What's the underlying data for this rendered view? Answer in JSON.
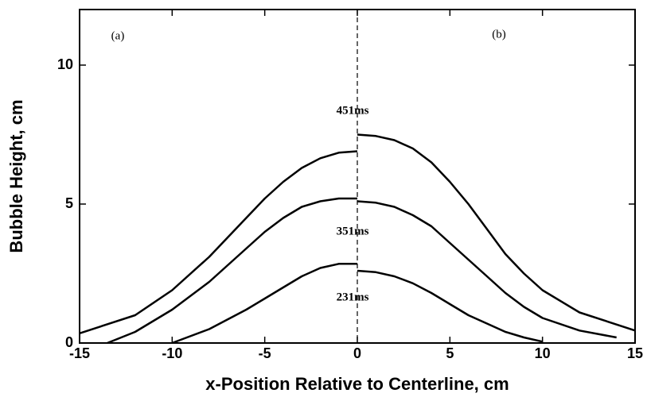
{
  "chart_data": {
    "type": "line",
    "x_label": "x-Position Relative to Centerline, cm",
    "y_label": "Bubble Height, cm",
    "annotations": [
      "451ms",
      "351ms",
      "231ms",
      "(a)",
      "(b)"
    ],
    "xlim": [
      -15,
      15
    ],
    "xticks": [
      -15,
      -10,
      -5,
      0,
      5,
      10,
      15
    ],
    "ylim": [
      0,
      12
    ],
    "yticks": [
      0,
      5,
      10
    ],
    "color": "#000000",
    "series": [
      {
        "x": [
          -15,
          -12,
          -10,
          -8,
          -6,
          -5,
          -4,
          -3,
          -2,
          -1,
          0
        ],
        "values": [
          0.35,
          1.0,
          1.9,
          3.1,
          4.5,
          5.2,
          5.8,
          6.3,
          6.65,
          6.85,
          6.9
        ]
      },
      {
        "x": [
          0,
          1,
          2,
          3,
          4,
          5,
          6,
          7,
          8,
          9,
          10,
          12,
          15
        ],
        "values": [
          7.5,
          7.45,
          7.3,
          7.0,
          6.5,
          5.8,
          5.0,
          4.1,
          3.2,
          2.5,
          1.9,
          1.1,
          0.45
        ]
      },
      {
        "x": [
          -13.5,
          -12,
          -10,
          -8,
          -6,
          -5,
          -4,
          -3,
          -2,
          -1,
          0
        ],
        "values": [
          0,
          0.4,
          1.2,
          2.2,
          3.4,
          4.0,
          4.5,
          4.9,
          5.1,
          5.2,
          5.2
        ]
      },
      {
        "x": [
          0,
          1,
          2,
          3,
          4,
          5,
          6,
          7,
          8,
          9,
          10,
          12,
          14
        ],
        "values": [
          5.1,
          5.05,
          4.9,
          4.6,
          4.2,
          3.6,
          3.0,
          2.4,
          1.8,
          1.3,
          0.9,
          0.45,
          0.2
        ]
      },
      {
        "x": [
          -10,
          -8,
          -6,
          -5,
          -4,
          -3,
          -2,
          -1,
          0
        ],
        "values": [
          0,
          0.5,
          1.2,
          1.6,
          2.0,
          2.4,
          2.7,
          2.85,
          2.85
        ]
      },
      {
        "x": [
          0,
          1,
          2,
          3,
          4,
          5,
          6,
          7,
          8,
          9,
          10
        ],
        "values": [
          2.6,
          2.55,
          2.4,
          2.15,
          1.8,
          1.4,
          1.0,
          0.7,
          0.4,
          0.2,
          0.05
        ]
      }
    ]
  }
}
